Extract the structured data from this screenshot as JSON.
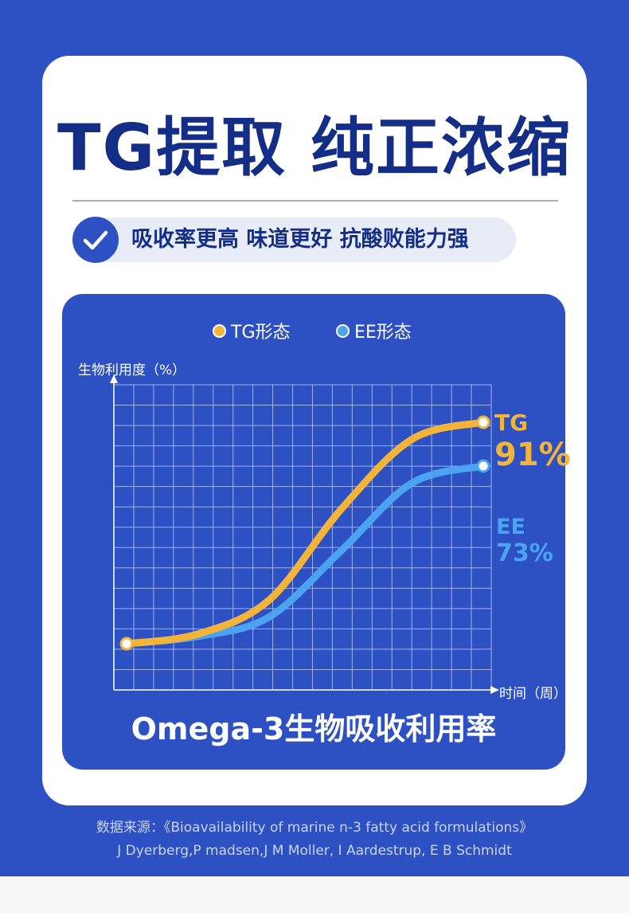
{
  "headline": "TG提取 纯正浓缩",
  "badge": {
    "icon": "check-icon",
    "text": "吸收率更高 味道更好 抗酸败能力强"
  },
  "colors": {
    "background": "#2d51c2",
    "headline": "#142d86",
    "tg": "#f4b43a",
    "ee": "#4ba3f2",
    "grid": "#c6d1f5"
  },
  "chart_data": {
    "type": "line",
    "title": "Omega-3生物吸收利用率",
    "ylabel": "生物利用度（%）",
    "xlabel": "时间（周）",
    "grid": true,
    "legend_placement": "top",
    "series": [
      {
        "name": "TG形态",
        "end_label_name": "TG",
        "end_label_value": "91%",
        "color": "#f4b43a",
        "points": [
          [
            0,
            0
          ],
          [
            3,
            4
          ],
          [
            6,
            18
          ],
          [
            9,
            55
          ],
          [
            12,
            84
          ],
          [
            15,
            91
          ]
        ]
      },
      {
        "name": "EE形态",
        "end_label_name": "EE",
        "end_label_value": "73%",
        "color": "#4ba3f2",
        "points": [
          [
            0,
            0
          ],
          [
            3,
            3
          ],
          [
            6,
            11
          ],
          [
            9,
            38
          ],
          [
            12,
            66
          ],
          [
            15,
            73
          ]
        ]
      }
    ]
  },
  "source": {
    "line1": "数据来源：《Bioavailability of marine n-3 fatty acid formulations》",
    "line2": "J Dyerberg,P madsen,J M Moller, I Aardestrup, E B Schmidt"
  }
}
